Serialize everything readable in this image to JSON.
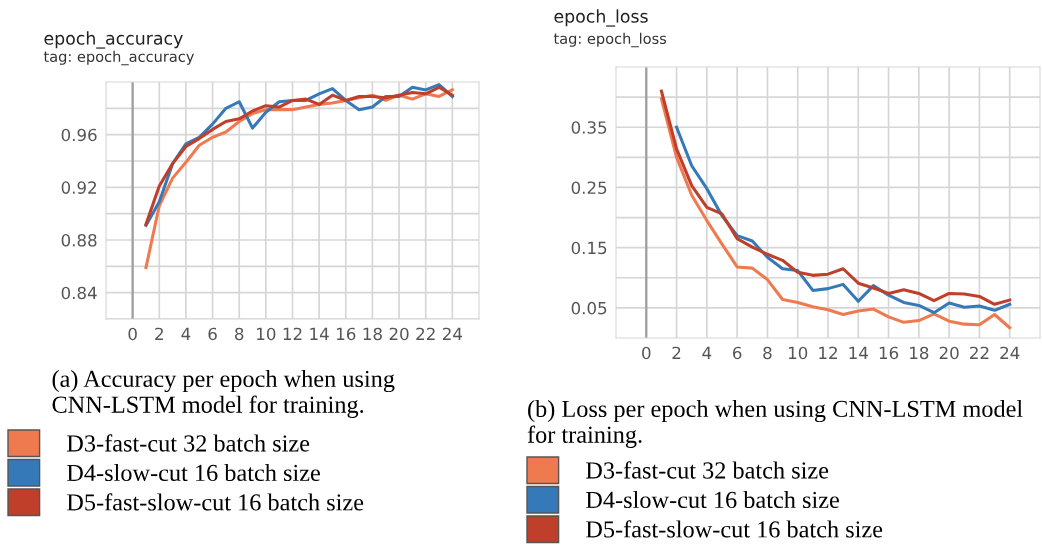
{
  "chart_data": [
    {
      "type": "line",
      "title": "epoch_accuracy",
      "subtitle": "tag: epoch_accuracy",
      "x": [
        1,
        2,
        3,
        4,
        5,
        6,
        7,
        8,
        9,
        10,
        11,
        12,
        13,
        14,
        15,
        16,
        17,
        18,
        19,
        20,
        21,
        22,
        23,
        24
      ],
      "series": [
        {
          "name": "D3-fast-cut 32 batch size",
          "color": "#f07a50",
          "values": [
            0.859,
            0.906,
            0.927,
            0.939,
            0.952,
            0.958,
            0.962,
            0.97,
            0.976,
            0.979,
            0.979,
            0.979,
            0.981,
            0.983,
            0.984,
            0.986,
            0.988,
            0.99,
            0.986,
            0.99,
            0.987,
            0.991,
            0.989,
            0.994
          ]
        },
        {
          "name": "D4-slow-cut 16 batch size",
          "color": "#3579b8",
          "values": [
            0.891,
            0.909,
            0.938,
            0.953,
            0.958,
            0.968,
            0.98,
            0.985,
            0.965,
            0.977,
            0.985,
            0.986,
            0.986,
            0.991,
            0.995,
            0.986,
            0.979,
            0.981,
            0.989,
            0.989,
            0.996,
            0.994,
            0.998,
            0.989
          ]
        },
        {
          "name": "D5-fast-slow-cut 16 batch size",
          "color": "#bf3f2a",
          "values": [
            0.892,
            0.921,
            0.938,
            0.951,
            0.957,
            0.964,
            0.97,
            0.972,
            0.978,
            0.982,
            0.981,
            0.986,
            0.987,
            0.983,
            0.99,
            0.986,
            0.989,
            0.989,
            0.988,
            0.99,
            0.992,
            0.991,
            0.996,
            0.99
          ]
        }
      ],
      "xlim": [
        -2,
        26
      ],
      "xticks": [
        0,
        2,
        4,
        6,
        8,
        10,
        12,
        14,
        16,
        18,
        20,
        22,
        24
      ],
      "ylim": [
        0.82,
        1.0
      ],
      "yticks": [
        {
          "value": 0.82,
          "label": null
        },
        0.84,
        {
          "value": 0.86,
          "label": null
        },
        0.88,
        {
          "value": 0.9,
          "label": null
        },
        0.92,
        {
          "value": 0.94,
          "label": null
        },
        0.96,
        {
          "value": 0.98,
          "label": null
        }
      ],
      "ref_lines": [
        {
          "axis": "x",
          "value": 0,
          "color": "#9e9e9e"
        }
      ],
      "grid": true,
      "legend": "bottom",
      "line_style": "solid",
      "annotations": [
        "(a) Accuracy per epoch when using CNN-LSTM model for training."
      ]
    },
    {
      "type": "line",
      "title": "epoch_loss",
      "subtitle": "tag: epoch_loss",
      "x": [
        1,
        2,
        3,
        4,
        5,
        6,
        7,
        8,
        9,
        10,
        11,
        12,
        13,
        14,
        15,
        16,
        17,
        18,
        19,
        20,
        21,
        22,
        23,
        24
      ],
      "series": [
        {
          "name": "D3-fast-cut 32 batch size",
          "color": "#f07a50",
          "values": [
            0.397,
            0.3,
            0.237,
            0.195,
            0.156,
            0.118,
            0.116,
            0.097,
            0.064,
            0.059,
            0.052,
            0.047,
            0.039,
            0.045,
            0.048,
            0.035,
            0.026,
            0.029,
            0.04,
            0.028,
            0.023,
            0.022,
            0.039,
            0.017
          ]
        },
        {
          "name": "D4-slow-cut 16 batch size",
          "color": "#3579b8",
          "values": [
            null,
            0.35,
            0.286,
            0.248,
            0.203,
            0.17,
            0.161,
            0.134,
            0.115,
            0.112,
            0.079,
            0.082,
            0.089,
            0.061,
            0.087,
            0.071,
            0.059,
            0.054,
            0.042,
            0.058,
            0.051,
            0.053,
            0.046,
            0.056
          ]
        },
        {
          "name": "D5-fast-slow-cut 16 batch size",
          "color": "#bf3f2a",
          "values": [
            0.41,
            0.314,
            0.253,
            0.217,
            0.206,
            0.165,
            0.151,
            0.139,
            0.129,
            0.109,
            0.104,
            0.106,
            0.115,
            0.091,
            0.083,
            0.074,
            0.08,
            0.074,
            0.062,
            0.074,
            0.073,
            0.069,
            0.056,
            0.063
          ]
        }
      ],
      "xlim": [
        -2,
        26
      ],
      "xticks": [
        0,
        2,
        4,
        6,
        8,
        10,
        12,
        14,
        16,
        18,
        20,
        22,
        24
      ],
      "ylim": [
        0,
        0.45
      ],
      "yticks": [
        0.05,
        {
          "value": 0.1,
          "label": null
        },
        0.15,
        {
          "value": 0.2,
          "label": null
        },
        0.25,
        {
          "value": 0.3,
          "label": null
        },
        0.35,
        {
          "value": 0.4,
          "label": null
        }
      ],
      "ref_lines": [
        {
          "axis": "x",
          "value": 0,
          "color": "#9e9e9e"
        }
      ],
      "grid": true,
      "legend": "bottom",
      "line_style": "solid",
      "annotations": [
        "(b) Loss per epoch when using CNN-LSTM model for training."
      ]
    }
  ]
}
